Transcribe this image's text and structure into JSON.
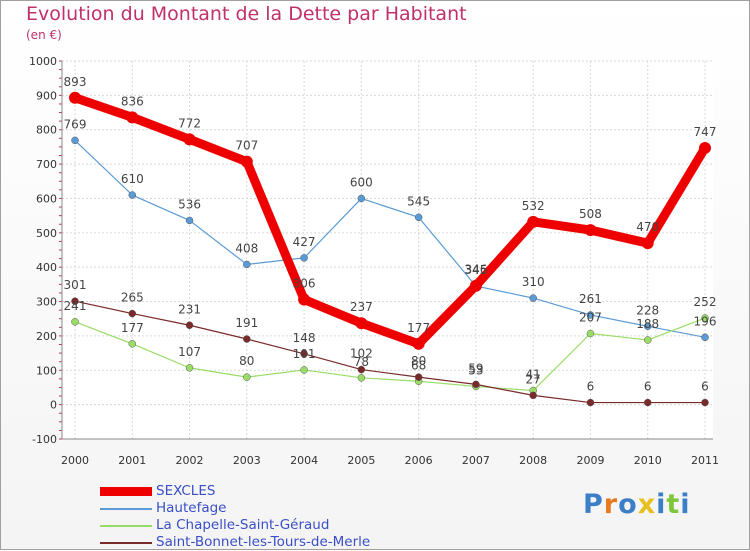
{
  "header": {
    "title": "Evolution du Montant de la Dette par Habitant",
    "unit": "(en €)"
  },
  "colors": {
    "title": "#c0306a",
    "legend_text": "#3a4fc7"
  },
  "chart_data": {
    "type": "line",
    "title": "Evolution du Montant de la Dette par Habitant",
    "ylabel": "(en €)",
    "ylim": [
      -100,
      1000
    ],
    "yticks": [
      -100,
      0,
      100,
      200,
      300,
      400,
      500,
      600,
      700,
      800,
      900,
      1000
    ],
    "x": [
      "2000",
      "2001",
      "2002",
      "2003",
      "2004",
      "2005",
      "2006",
      "2007",
      "2008",
      "2009",
      "2010",
      "2011"
    ],
    "grid": true,
    "legend_position": "bottom-left",
    "series": [
      {
        "name": "SEXCLES",
        "color": "#ee0000",
        "values": [
          893,
          836,
          772,
          707,
          306,
          237,
          177,
          346,
          532,
          508,
          470,
          747
        ]
      },
      {
        "name": "Hautefage",
        "color": "#5b9bd5",
        "values": [
          769,
          610,
          536,
          408,
          427,
          600,
          545,
          345,
          310,
          261,
          228,
          196
        ]
      },
      {
        "name": "La Chapelle-Saint-Géraud",
        "color": "#99dd66",
        "values": [
          241,
          177,
          107,
          80,
          101,
          78,
          68,
          53,
          41,
          207,
          188,
          252
        ]
      },
      {
        "name": "Saint-Bonnet-les-Tours-de-Merle",
        "color": "#7a2a2a",
        "values": [
          301,
          265,
          231,
          191,
          148,
          102,
          80,
          59,
          27,
          6,
          6,
          6
        ]
      }
    ]
  },
  "logo": {
    "letters": [
      "P",
      "r",
      "o",
      "x",
      "i",
      "t",
      "i"
    ],
    "colors": [
      "#3a7fc7",
      "#e87a1e",
      "#3a7fc7",
      "#e8c01e",
      "#3a7fc7",
      "#7fc73a",
      "#3a7fc7"
    ]
  }
}
